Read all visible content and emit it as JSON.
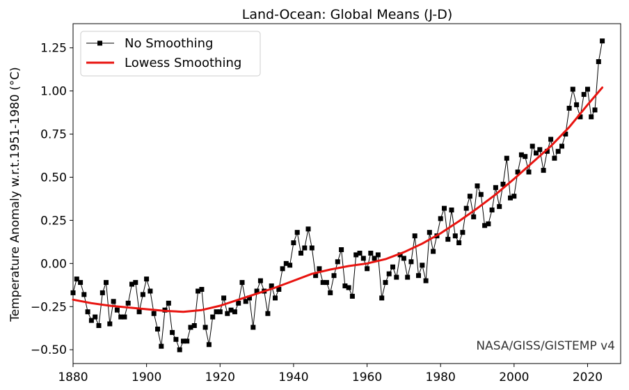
{
  "chart_data": {
    "type": "line",
    "title": "Land-Ocean: Global Means (J-D)",
    "xlabel": "",
    "ylabel": "Temperature Anomaly w.r.t.1951-1980 (°C)",
    "xlim": [
      1880,
      2029
    ],
    "ylim": [
      -0.58,
      1.39
    ],
    "xticks": [
      1880,
      1900,
      1920,
      1940,
      1960,
      1980,
      2000,
      2020
    ],
    "yticks": [
      -0.5,
      -0.25,
      0.0,
      0.25,
      0.5,
      0.75,
      1.0,
      1.25
    ],
    "ytick_labels": [
      "−0.50",
      "−0.25",
      "0.00",
      "0.25",
      "0.50",
      "0.75",
      "1.00",
      "1.25"
    ],
    "legend_position": "top-left",
    "annotation": "NASA/GISS/GISTEMP v4",
    "series": [
      {
        "name": "No Smoothing",
        "color": "#000000",
        "marker": "square",
        "x": [
          1880,
          1881,
          1882,
          1883,
          1884,
          1885,
          1886,
          1887,
          1888,
          1889,
          1890,
          1891,
          1892,
          1893,
          1894,
          1895,
          1896,
          1897,
          1898,
          1899,
          1900,
          1901,
          1902,
          1903,
          1904,
          1905,
          1906,
          1907,
          1908,
          1909,
          1910,
          1911,
          1912,
          1913,
          1914,
          1915,
          1916,
          1917,
          1918,
          1919,
          1920,
          1921,
          1922,
          1923,
          1924,
          1925,
          1926,
          1927,
          1928,
          1929,
          1930,
          1931,
          1932,
          1933,
          1934,
          1935,
          1936,
          1937,
          1938,
          1939,
          1940,
          1941,
          1942,
          1943,
          1944,
          1945,
          1946,
          1947,
          1948,
          1949,
          1950,
          1951,
          1952,
          1953,
          1954,
          1955,
          1956,
          1957,
          1958,
          1959,
          1960,
          1961,
          1962,
          1963,
          1964,
          1965,
          1966,
          1967,
          1968,
          1969,
          1970,
          1971,
          1972,
          1973,
          1974,
          1975,
          1976,
          1977,
          1978,
          1979,
          1980,
          1981,
          1982,
          1983,
          1984,
          1985,
          1986,
          1987,
          1988,
          1989,
          1990,
          1991,
          1992,
          1993,
          1994,
          1995,
          1996,
          1997,
          1998,
          1999,
          2000,
          2001,
          2002,
          2003,
          2004,
          2005,
          2006,
          2007,
          2008,
          2009,
          2010,
          2011,
          2012,
          2013,
          2014,
          2015,
          2016,
          2017,
          2018,
          2019,
          2020,
          2021,
          2022,
          2023,
          2024
        ],
        "values": [
          -0.17,
          -0.09,
          -0.11,
          -0.18,
          -0.28,
          -0.33,
          -0.31,
          -0.36,
          -0.17,
          -0.11,
          -0.35,
          -0.22,
          -0.27,
          -0.31,
          -0.31,
          -0.23,
          -0.12,
          -0.11,
          -0.28,
          -0.18,
          -0.09,
          -0.16,
          -0.29,
          -0.38,
          -0.48,
          -0.27,
          -0.23,
          -0.4,
          -0.44,
          -0.5,
          -0.45,
          -0.45,
          -0.37,
          -0.36,
          -0.16,
          -0.15,
          -0.37,
          -0.47,
          -0.31,
          -0.28,
          -0.28,
          -0.2,
          -0.29,
          -0.27,
          -0.28,
          -0.23,
          -0.11,
          -0.22,
          -0.2,
          -0.37,
          -0.16,
          -0.1,
          -0.16,
          -0.29,
          -0.13,
          -0.2,
          -0.15,
          -0.03,
          0.0,
          -0.01,
          0.12,
          0.18,
          0.06,
          0.09,
          0.2,
          0.09,
          -0.07,
          -0.03,
          -0.11,
          -0.11,
          -0.17,
          -0.07,
          0.01,
          0.08,
          -0.13,
          -0.14,
          -0.19,
          0.05,
          0.06,
          0.03,
          -0.03,
          0.06,
          0.03,
          0.05,
          -0.2,
          -0.11,
          -0.06,
          -0.02,
          -0.08,
          0.05,
          0.03,
          -0.08,
          0.01,
          0.16,
          -0.07,
          -0.01,
          -0.1,
          0.18,
          0.07,
          0.16,
          0.26,
          0.32,
          0.14,
          0.31,
          0.16,
          0.12,
          0.18,
          0.32,
          0.39,
          0.27,
          0.45,
          0.4,
          0.22,
          0.23,
          0.31,
          0.44,
          0.33,
          0.46,
          0.61,
          0.38,
          0.39,
          0.53,
          0.63,
          0.62,
          0.53,
          0.68,
          0.64,
          0.66,
          0.54,
          0.65,
          0.72,
          0.61,
          0.65,
          0.68,
          0.75,
          0.9,
          1.01,
          0.92,
          0.85,
          0.98,
          1.01,
          0.85,
          0.89,
          1.17,
          1.29
        ]
      },
      {
        "name": "Lowess Smoothing",
        "color": "#e8130f",
        "marker": "none",
        "x": [
          1880,
          1885,
          1890,
          1895,
          1900,
          1905,
          1910,
          1915,
          1920,
          1925,
          1930,
          1935,
          1940,
          1945,
          1950,
          1955,
          1960,
          1965,
          1970,
          1975,
          1980,
          1985,
          1990,
          1995,
          2000,
          2005,
          2010,
          2015,
          2020,
          2024
        ],
        "values": [
          -0.21,
          -0.23,
          -0.245,
          -0.255,
          -0.265,
          -0.275,
          -0.28,
          -0.27,
          -0.245,
          -0.21,
          -0.175,
          -0.14,
          -0.1,
          -0.06,
          -0.035,
          -0.015,
          0.0,
          0.025,
          0.065,
          0.115,
          0.175,
          0.245,
          0.32,
          0.4,
          0.49,
          0.585,
          0.68,
          0.79,
          0.92,
          1.02
        ]
      }
    ]
  }
}
